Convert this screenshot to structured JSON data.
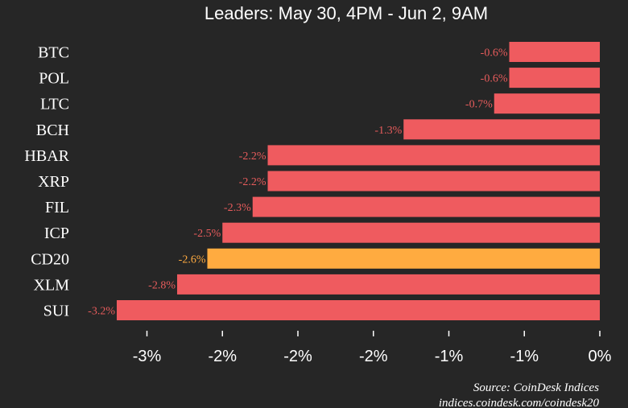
{
  "chart_data": {
    "type": "bar",
    "orientation": "horizontal",
    "title": "Leaders: May 30, 4PM - Jun 2, 9AM",
    "categories": [
      "BTC",
      "POL",
      "LTC",
      "BCH",
      "HBAR",
      "XRP",
      "FIL",
      "ICP",
      "CD20",
      "XLM",
      "SUI"
    ],
    "values": [
      -0.6,
      -0.6,
      -0.7,
      -1.3,
      -2.2,
      -2.2,
      -2.3,
      -2.5,
      -2.6,
      -2.8,
      -3.2
    ],
    "value_labels": [
      "-0.6%",
      "-0.6%",
      "-0.7%",
      "-1.3%",
      "-2.2%",
      "-2.2%",
      "-2.3%",
      "-2.5%",
      "-2.6%",
      "-2.8%",
      "-3.2%"
    ],
    "highlight_category": "CD20",
    "xlim": [
      -3.2,
      0
    ],
    "x_ticks": [
      -3.0,
      -2.5,
      -2.0,
      -1.5,
      -1.0,
      -0.5,
      0
    ],
    "x_tick_labels": [
      "-3%",
      "-2%",
      "-2%",
      "-2%",
      "-1%",
      "-1%",
      "0%"
    ],
    "xlabel": "",
    "ylabel": "",
    "grid": false,
    "legend": "none",
    "colors": {
      "background": "#262626",
      "bar": "#ef5b5f",
      "highlight_bar": "#ffab40",
      "label_normal": "#e85c5c",
      "label_highlight": "#ffab40",
      "text": "#ffffff"
    }
  },
  "source": {
    "line1": "Source: CoinDesk Indices",
    "line2": "indices.coindesk.com/coindesk20"
  }
}
